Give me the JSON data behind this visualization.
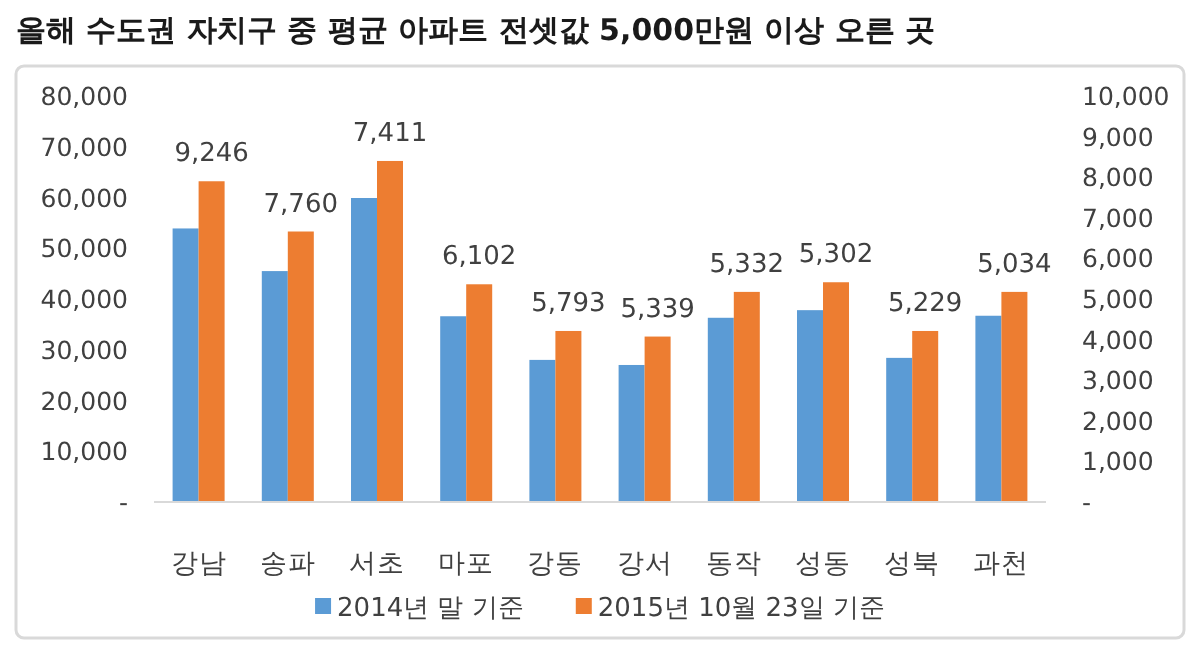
{
  "chart_data": {
    "type": "bar",
    "title": "올해 수도권 자치구 중 평균 아파트 전셋값 5,000만원 이상 오른 곳",
    "categories": [
      "강남",
      "송파",
      "서초",
      "마포",
      "강동",
      "강서",
      "동작",
      "성동",
      "성북",
      "과천"
    ],
    "series": [
      {
        "name": "2014년 말 기준",
        "color": "#5b9bd5",
        "values": [
          53900,
          45500,
          59900,
          36600,
          28000,
          27000,
          36300,
          37800,
          28400,
          36700
        ]
      },
      {
        "name": "2015년 10월 23일 기준",
        "color": "#ed7d31",
        "values": [
          63200,
          53300,
          67200,
          42900,
          33700,
          32600,
          41400,
          43300,
          33700,
          41400
        ]
      }
    ],
    "annotations": [
      {
        "text": "9,246",
        "x": "강남",
        "y": 63200
      },
      {
        "text": "7,760",
        "x": "송파",
        "y": 53300
      },
      {
        "text": "7,411",
        "x": "서초",
        "y": 67200
      },
      {
        "text": "6,102",
        "x": "마포",
        "y": 42900
      },
      {
        "text": "5,793",
        "x": "강동",
        "y": 33700
      },
      {
        "text": "5,339",
        "x": "강서",
        "y": 32600
      },
      {
        "text": "5,332",
        "x": "동작",
        "y": 41400
      },
      {
        "text": "5,302",
        "x": "성동",
        "y": 43300
      },
      {
        "text": "5,229",
        "x": "성북",
        "y": 33700
      },
      {
        "text": "5,034",
        "x": "과천",
        "y": 41400
      }
    ],
    "ylim": [
      0,
      80000
    ],
    "yticks": [
      {
        "value": 0,
        "label": "-"
      },
      {
        "value": 10000,
        "label": "10,000"
      },
      {
        "value": 20000,
        "label": "20,000"
      },
      {
        "value": 30000,
        "label": "30,000"
      },
      {
        "value": 40000,
        "label": "40,000"
      },
      {
        "value": 50000,
        "label": "50,000"
      },
      {
        "value": 60000,
        "label": "60,000"
      },
      {
        "value": 70000,
        "label": "70,000"
      },
      {
        "value": 80000,
        "label": "80,000"
      }
    ],
    "y2lim": [
      0,
      10000
    ],
    "y2ticks": [
      {
        "value": 0,
        "label": "-"
      },
      {
        "value": 1000,
        "label": "1,000"
      },
      {
        "value": 2000,
        "label": "2,000"
      },
      {
        "value": 3000,
        "label": "3,000"
      },
      {
        "value": 4000,
        "label": "4,000"
      },
      {
        "value": 5000,
        "label": "5,000"
      },
      {
        "value": 6000,
        "label": "6,000"
      },
      {
        "value": 7000,
        "label": "7,000"
      },
      {
        "value": 8000,
        "label": "8,000"
      },
      {
        "value": 9000,
        "label": "9,000"
      },
      {
        "value": 10000,
        "label": "10,000"
      }
    ],
    "legend": "bottom"
  }
}
